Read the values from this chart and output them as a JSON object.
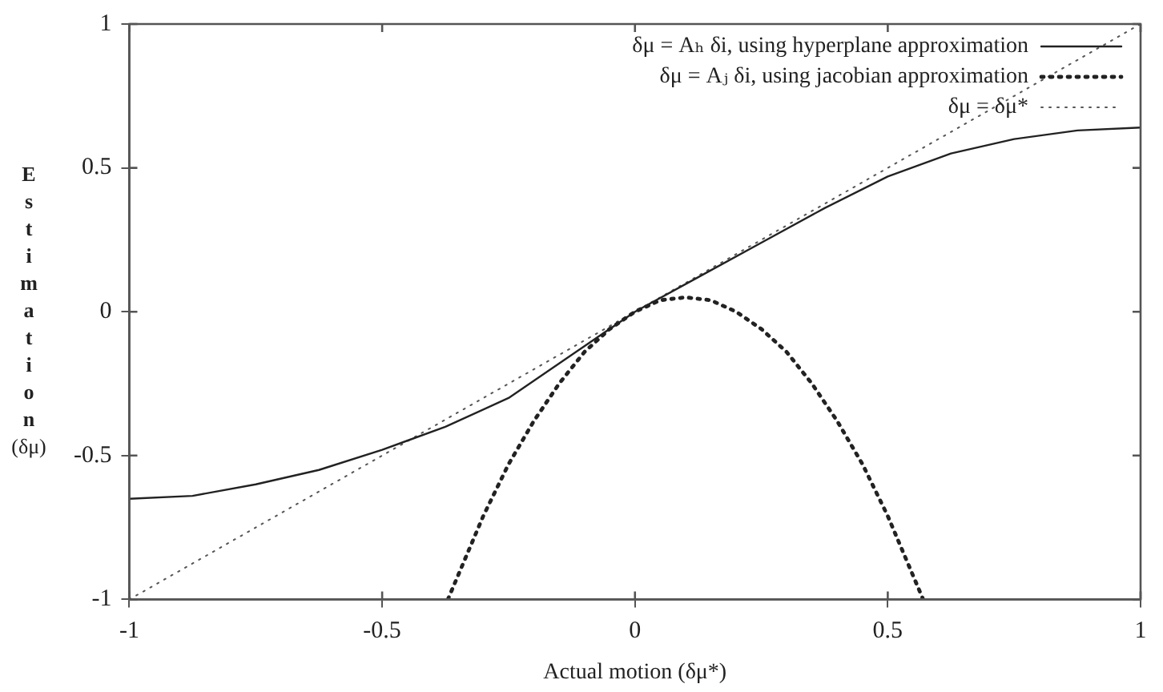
{
  "chart_data": {
    "type": "line",
    "xlabel": "Actual motion (δμ*)",
    "ylabel": "Estimation (δμ)",
    "xlim": [
      -1,
      1
    ],
    "ylim": [
      -1,
      1
    ],
    "xticks": [
      -1,
      -0.5,
      0,
      0.5,
      1
    ],
    "yticks": [
      -1,
      -0.5,
      0,
      0.5,
      1
    ],
    "grid": false,
    "legend": "top right",
    "marker": "none",
    "series": [
      {
        "name": "δμ = Aₕ δi, using hyperplane approximation",
        "color": "#222222",
        "line_style": "solid",
        "x": [
          -1,
          -0.875,
          -0.75,
          -0.625,
          -0.5,
          -0.375,
          -0.25,
          -0.125,
          0,
          0.125,
          0.25,
          0.375,
          0.5,
          0.625,
          0.75,
          0.875,
          1
        ],
        "values": [
          -0.65,
          -0.64,
          -0.6,
          -0.55,
          -0.48,
          -0.4,
          -0.3,
          -0.15,
          0,
          0.12,
          0.24,
          0.36,
          0.47,
          0.55,
          0.6,
          0.63,
          0.64
        ]
      },
      {
        "name": "δμ = Aⱼ δi, using jacobian approximation",
        "color": "#222222",
        "line_style": "dotted",
        "x": [
          -0.37,
          -0.3,
          -0.25,
          -0.2,
          -0.15,
          -0.1,
          -0.05,
          0,
          0.05,
          0.1,
          0.15,
          0.2,
          0.25,
          0.3,
          0.35,
          0.4,
          0.45,
          0.5,
          0.57
        ],
        "values": [
          -1,
          -0.71,
          -0.53,
          -0.38,
          -0.25,
          -0.14,
          -0.06,
          0,
          0.04,
          0.05,
          0.04,
          0,
          -0.06,
          -0.14,
          -0.25,
          -0.38,
          -0.53,
          -0.71,
          -1
        ]
      },
      {
        "name": "δμ = δμ*",
        "color": "#555555",
        "line_style": "dotted",
        "x": [
          -1,
          1
        ],
        "values": [
          -1,
          1
        ]
      }
    ]
  }
}
